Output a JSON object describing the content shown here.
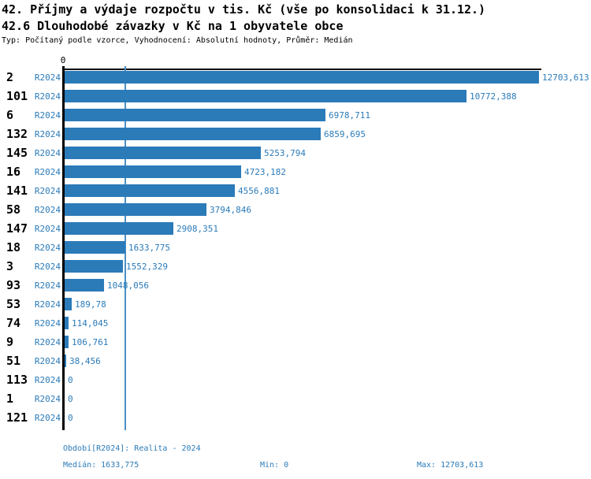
{
  "header": {
    "title_line1": "42. Příjmy a výdaje rozpočtu v tis. Kč (vše po konsolidaci k 31.12.)",
    "title_line2": "42.6 Dlouhodobé závazky v Kč na 1 obyvatele obce",
    "subtitle": "Typ: Počítaný podle vzorce, Vyhodnocení: Absolutní hodnoty, Průměr: Medián"
  },
  "axis": {
    "zero_label": "0"
  },
  "colors": {
    "bar": "#2b7bb9",
    "blue_text": "#2b7bb9",
    "median_line": "#4a90c6",
    "axis": "#000000"
  },
  "rows": [
    {
      "rank": "2",
      "period": "R2024",
      "value_label": "12703,613",
      "value": 12703.613
    },
    {
      "rank": "101",
      "period": "R2024",
      "value_label": "10772,388",
      "value": 10772.388
    },
    {
      "rank": "6",
      "period": "R2024",
      "value_label": "6978,711",
      "value": 6978.711
    },
    {
      "rank": "132",
      "period": "R2024",
      "value_label": "6859,695",
      "value": 6859.695
    },
    {
      "rank": "145",
      "period": "R2024",
      "value_label": "5253,794",
      "value": 5253.794
    },
    {
      "rank": "16",
      "period": "R2024",
      "value_label": "4723,182",
      "value": 4723.182
    },
    {
      "rank": "141",
      "period": "R2024",
      "value_label": "4556,881",
      "value": 4556.881
    },
    {
      "rank": "58",
      "period": "R2024",
      "value_label": "3794,846",
      "value": 3794.846
    },
    {
      "rank": "147",
      "period": "R2024",
      "value_label": "2908,351",
      "value": 2908.351
    },
    {
      "rank": "18",
      "period": "R2024",
      "value_label": "1633,775",
      "value": 1633.775
    },
    {
      "rank": "3",
      "period": "R2024",
      "value_label": "1552,329",
      "value": 1552.329
    },
    {
      "rank": "93",
      "period": "R2024",
      "value_label": "1048,056",
      "value": 1048.056
    },
    {
      "rank": "53",
      "period": "R2024",
      "value_label": "189,78",
      "value": 189.78
    },
    {
      "rank": "74",
      "period": "R2024",
      "value_label": "114,045",
      "value": 114.045
    },
    {
      "rank": "9",
      "period": "R2024",
      "value_label": "106,761",
      "value": 106.761
    },
    {
      "rank": "51",
      "period": "R2024",
      "value_label": "38,456",
      "value": 38.456
    },
    {
      "rank": "113",
      "period": "R2024",
      "value_label": "0",
      "value": 0
    },
    {
      "rank": "1",
      "period": "R2024",
      "value_label": "0",
      "value": 0
    },
    {
      "rank": "121",
      "period": "R2024",
      "value_label": "0",
      "value": 0
    }
  ],
  "footer": {
    "period_info": "Období[R2024]: Realita - 2024",
    "median": "Medián: 1633,775",
    "min": "Min: 0",
    "max": "Max: 12703,613"
  },
  "chart_data": {
    "type": "bar",
    "orientation": "horizontal",
    "title": "42. Příjmy a výdaje rozpočtu v tis. Kč (vše po konsolidaci k 31.12.)",
    "subtitle": "42.6 Dlouhodobé závazky v Kč na 1 obyvatele obce",
    "type_note": "Typ: Počítaný podle vzorce, Vyhodnocení: Absolutní hodnoty, Průměr: Medián",
    "categories": [
      "2",
      "101",
      "6",
      "132",
      "145",
      "16",
      "141",
      "58",
      "147",
      "18",
      "3",
      "93",
      "53",
      "74",
      "9",
      "51",
      "113",
      "1",
      "121"
    ],
    "series": [
      {
        "name": "R2024",
        "label": "Realita - 2024",
        "values": [
          12703.613,
          10772.388,
          6978.711,
          6859.695,
          5253.794,
          4723.182,
          4556.881,
          3794.846,
          2908.351,
          1633.775,
          1552.329,
          1048.056,
          189.78,
          114.045,
          106.761,
          38.456,
          0,
          0,
          0
        ]
      }
    ],
    "xlabel": "",
    "ylabel": "",
    "xlim": [
      0,
      12703.613
    ],
    "x_ticks": [
      0
    ],
    "grid": false,
    "legend_position": "none",
    "annotations": {
      "median": 1633.775,
      "min": 0,
      "max": 12703.613
    }
  }
}
